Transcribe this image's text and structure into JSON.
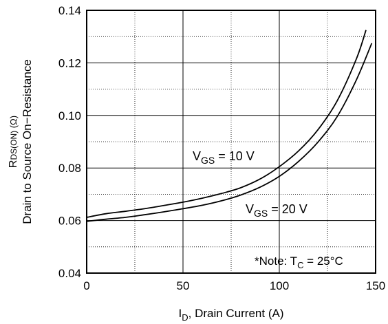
{
  "chart_data": {
    "type": "line",
    "xlabel": {
      "main": "I",
      "sub": "D",
      "rest": ", Drain Current (A)"
    },
    "ylabel": {
      "line1": {
        "main": "R",
        "sub": "DS(ON)",
        "rest": " (Ω)"
      },
      "line2": "Drain to Source On−Resistance"
    },
    "xlim": [
      0,
      150
    ],
    "ylim": [
      0.04,
      0.14
    ],
    "x_ticks": [
      "0",
      "50",
      "100",
      "150"
    ],
    "y_ticks": [
      "0.04",
      "0.06",
      "0.08",
      "0.10",
      "0.12",
      "0.14"
    ],
    "x_tick_values": [
      0,
      50,
      100,
      150
    ],
    "y_tick_values": [
      0.04,
      0.06,
      0.08,
      0.1,
      0.12,
      0.14
    ],
    "grid": {
      "major_solid": true,
      "minor_dotted": true
    },
    "series": [
      {
        "name": {
          "main": "V",
          "sub": "GS",
          "rest": " = 10 V"
        },
        "x": [
          0,
          10,
          20,
          30,
          40,
          50,
          60,
          70,
          80,
          90,
          100,
          110,
          120,
          130,
          140,
          145
        ],
        "y": [
          0.0612,
          0.0626,
          0.0635,
          0.0645,
          0.0657,
          0.067,
          0.0685,
          0.0703,
          0.0725,
          0.0758,
          0.0805,
          0.0865,
          0.0945,
          0.1055,
          0.1215,
          0.1325
        ]
      },
      {
        "name": {
          "main": "V",
          "sub": "GS",
          "rest": " = 20 V"
        },
        "x": [
          0,
          10,
          20,
          30,
          40,
          50,
          60,
          70,
          80,
          90,
          100,
          110,
          120,
          130,
          140,
          148
        ],
        "y": [
          0.0597,
          0.0605,
          0.0612,
          0.0622,
          0.0633,
          0.0645,
          0.0658,
          0.0675,
          0.0697,
          0.0727,
          0.0768,
          0.0825,
          0.0898,
          0.0995,
          0.1135,
          0.1275
        ]
      }
    ],
    "annotation": {
      "prefix": "*Note: T",
      "sub": "C",
      "rest": " = 25°C"
    }
  }
}
